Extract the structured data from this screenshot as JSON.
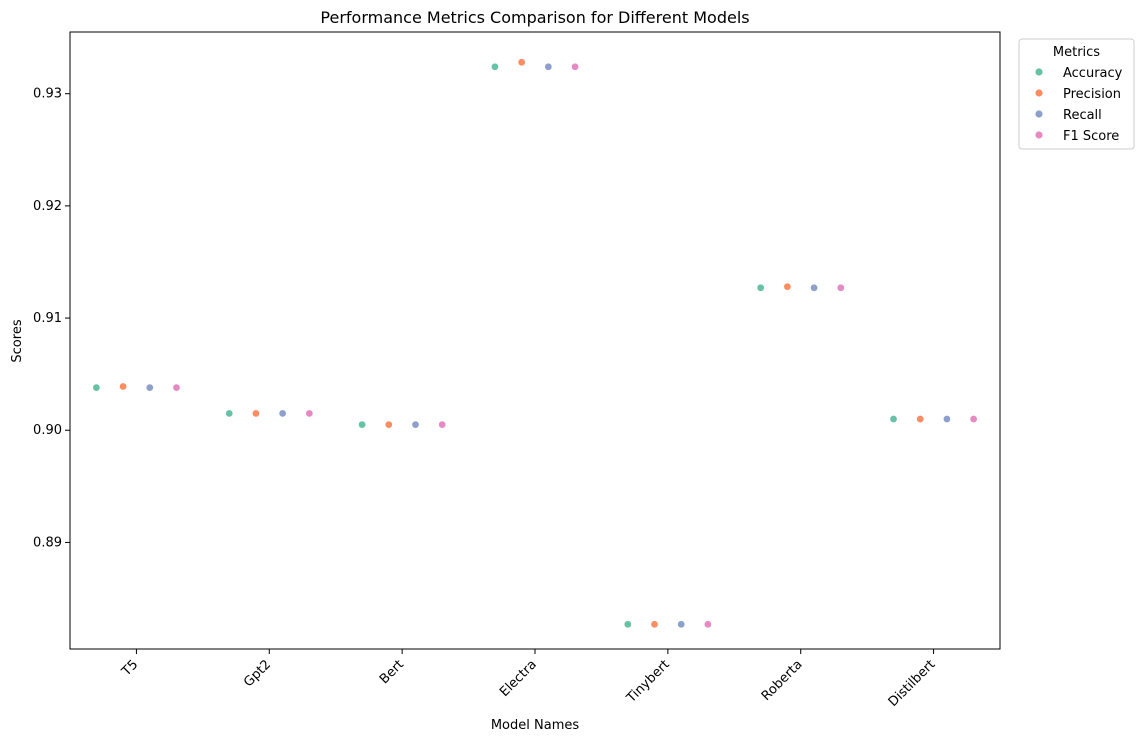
{
  "chart_data": {
    "type": "scatter",
    "title": "Performance Metrics Comparison for Different Models",
    "xlabel": "Model Names",
    "ylabel": "Scores",
    "categories": [
      "T5",
      "Gpt2",
      "Bert",
      "Electra",
      "Tinybert",
      "Roberta",
      "Distilbert"
    ],
    "ylim": [
      0.8805,
      0.9355
    ],
    "yticks": [
      0.89,
      0.9,
      0.91,
      0.92,
      0.93
    ],
    "ytick_labels": [
      "0.89",
      "0.90",
      "0.91",
      "0.92",
      "0.93"
    ],
    "grid": false,
    "legend": {
      "title": "Metrics",
      "placement": "outside-top-right"
    },
    "series": [
      {
        "name": "Accuracy",
        "color": "#66c2a5",
        "values": [
          0.9038,
          0.9015,
          0.9005,
          0.9324,
          0.8827,
          0.9127,
          0.901
        ]
      },
      {
        "name": "Precision",
        "color": "#fc8d62",
        "values": [
          0.9039,
          0.9015,
          0.9005,
          0.9328,
          0.8827,
          0.9128,
          0.901
        ]
      },
      {
        "name": "Recall",
        "color": "#8da0cb",
        "values": [
          0.9038,
          0.9015,
          0.9005,
          0.9324,
          0.8827,
          0.9127,
          0.901
        ]
      },
      {
        "name": "F1 Score",
        "color": "#e78ac3",
        "values": [
          0.9038,
          0.9015,
          0.9005,
          0.9324,
          0.8827,
          0.9127,
          0.901
        ]
      }
    ]
  }
}
